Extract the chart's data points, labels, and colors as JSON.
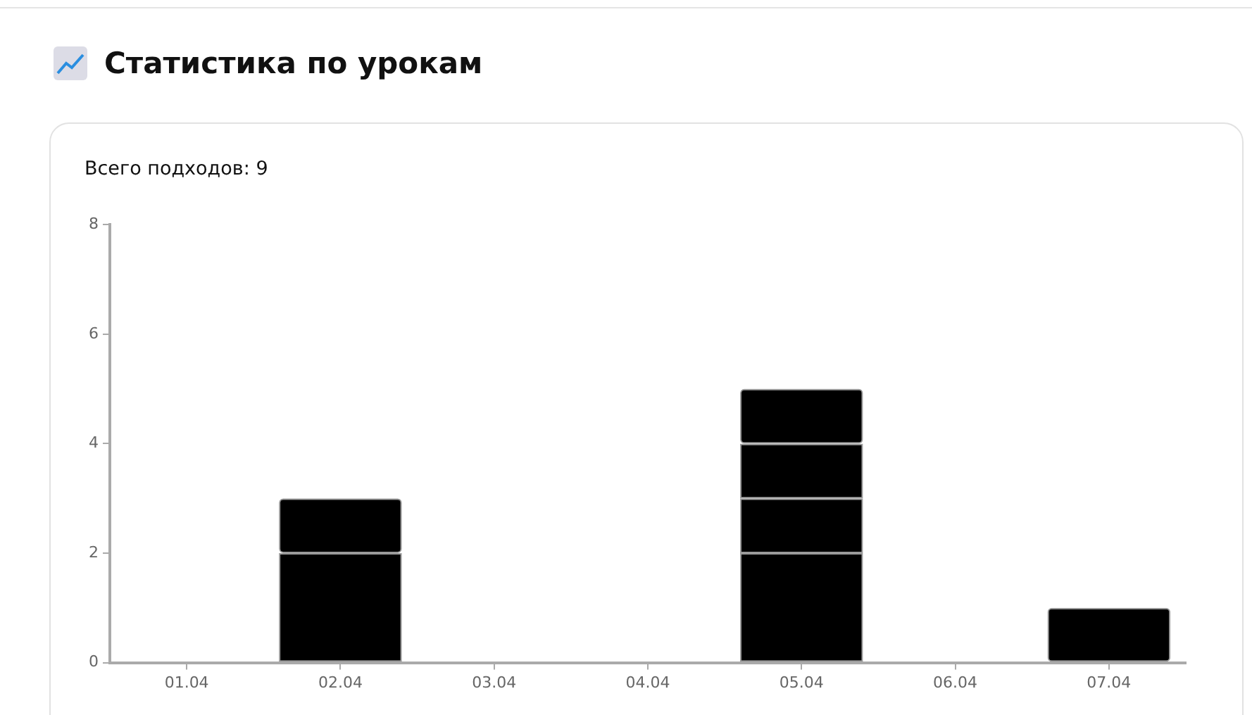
{
  "chart_data": {
    "type": "bar",
    "title": "Статистика по урокам",
    "subtitle": "Всего подходов: 9",
    "categories": [
      "01.04",
      "02.04",
      "03.04",
      "04.04",
      "05.04",
      "06.04",
      "07.04"
    ],
    "stacked": true,
    "series": [
      {
        "color": "#000000",
        "values": [
          null,
          2,
          null,
          null,
          2,
          null,
          1
        ]
      },
      {
        "color": "#000000",
        "values": [
          null,
          1,
          null,
          null,
          1,
          null,
          null
        ]
      },
      {
        "color": "#000000",
        "values": [
          null,
          null,
          null,
          null,
          1,
          null,
          null
        ]
      },
      {
        "color": "#000000",
        "values": [
          null,
          null,
          null,
          null,
          1,
          null,
          null
        ]
      }
    ],
    "ylim": [
      0,
      8
    ],
    "yticks": [
      0,
      2,
      4,
      6,
      8
    ],
    "grid": false,
    "legend": false
  }
}
